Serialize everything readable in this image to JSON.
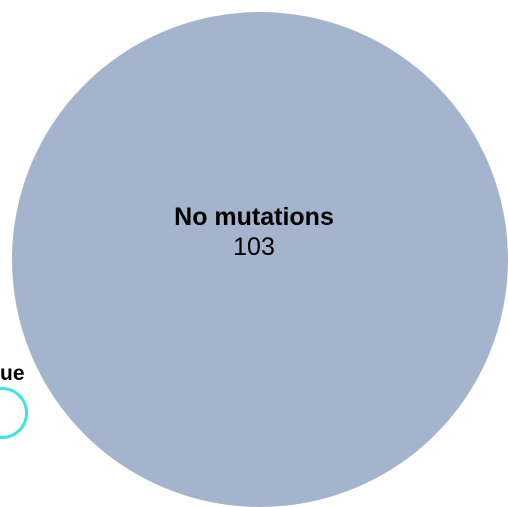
{
  "sets": [
    {
      "id": "left_set",
      "label": "ue",
      "color": "#3ee3e3"
    },
    {
      "id": "main_set",
      "label": "No mutations",
      "count": "103",
      "color": "#a3b4cc"
    }
  ]
}
